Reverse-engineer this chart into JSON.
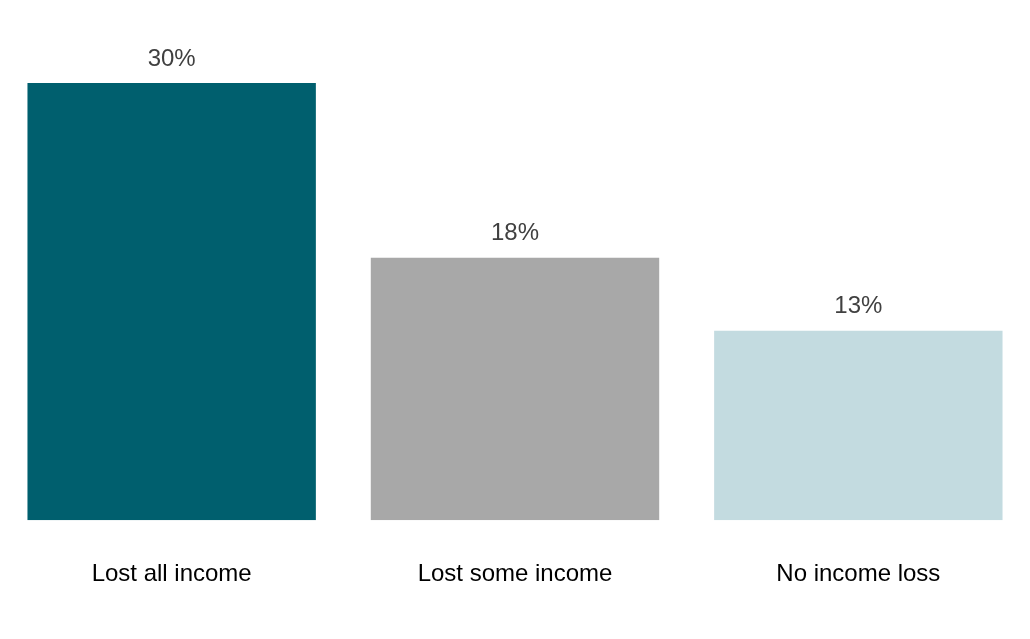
{
  "chart_data": {
    "type": "bar",
    "categories": [
      "Lost all income",
      "Lost some income",
      "No income loss"
    ],
    "values": [
      30,
      18,
      13
    ],
    "colors": [
      "#005f6e",
      "#a8a8a8",
      "#c3dbe0"
    ],
    "value_labels": [
      "30%",
      "18%",
      "13%"
    ],
    "grid": false,
    "legend": false
  }
}
